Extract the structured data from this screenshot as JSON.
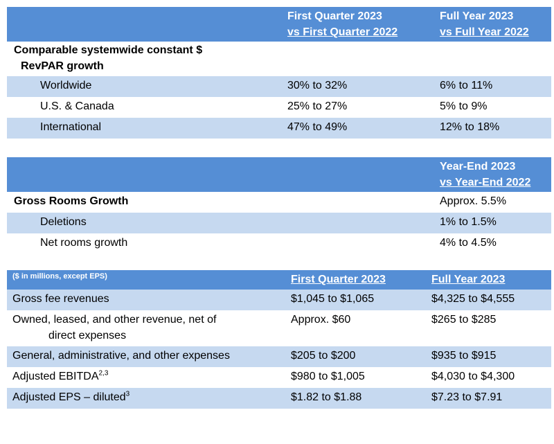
{
  "revpar": {
    "header": {
      "col1_line1": "First Quarter 2023",
      "col1_line2": "vs First Quarter 2022",
      "col2_line1": "Full Year 2023",
      "col2_line2": "vs Full Year 2022"
    },
    "section_title_line1": "Comparable systemwide constant $",
    "section_title_line2": "RevPAR growth",
    "rows": [
      {
        "label": "Worldwide",
        "q1": "30% to 32%",
        "fy": "6% to 11%"
      },
      {
        "label": "U.S. & Canada",
        "q1": "25% to 27%",
        "fy": "5% to 9%"
      },
      {
        "label": "International",
        "q1": "47% to 49%",
        "fy": "12% to 18%"
      }
    ]
  },
  "rooms": {
    "header": {
      "col_line1": "Year-End 2023",
      "col_line2": "vs Year-End 2022"
    },
    "title": "Gross Rooms Growth",
    "title_value": "Approx. 5.5%",
    "rows": [
      {
        "label": "Deletions",
        "value": "1% to 1.5%"
      },
      {
        "label": "Net rooms growth",
        "value": "4% to 4.5%"
      }
    ]
  },
  "financials": {
    "header": {
      "label": "($ in millions, except EPS)",
      "col1": "First Quarter 2023",
      "col2": "Full Year 2023"
    },
    "rows": [
      {
        "label": "Gross fee revenues",
        "q1": "$1,045 to $1,065",
        "fy": "$4,325 to $4,555"
      },
      {
        "label": "Owned, leased, and other revenue, net of",
        "label_line2": "direct expenses",
        "q1": "Approx. $60",
        "fy": "$265 to $285"
      },
      {
        "label": "General, administrative, and other expenses",
        "q1": "$205 to $200",
        "fy": "$935 to $915"
      },
      {
        "label": "Adjusted EBITDA",
        "sup": "2,3",
        "q1": "$980 to $1,005",
        "fy": "$4,030 to $4,300"
      },
      {
        "label": "Adjusted EPS – diluted",
        "sup": "3",
        "q1": "$1.82 to $1.88",
        "fy": "$7.23 to $7.91"
      }
    ]
  }
}
